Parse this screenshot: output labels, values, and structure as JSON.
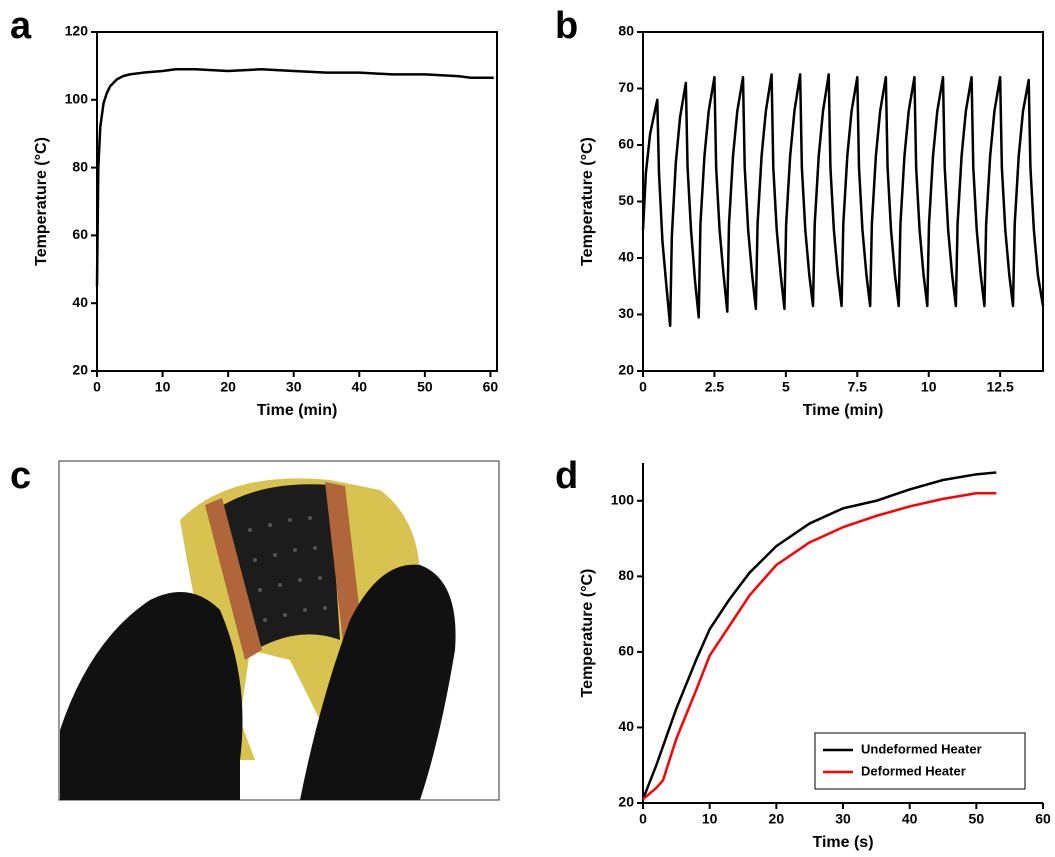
{
  "panel_labels": [
    "a",
    "b",
    "c",
    "d"
  ],
  "chart_data": [
    {
      "type": "line",
      "xlabel": "Time (min)",
      "ylabel": "Temperature (°C)",
      "xlim": [
        0,
        61
      ],
      "xticks": [
        0,
        10,
        20,
        30,
        40,
        50,
        60
      ],
      "ylim": [
        20,
        120
      ],
      "yticks": [
        20,
        40,
        60,
        80,
        100,
        120
      ],
      "series": [
        {
          "color": "#000000",
          "x": [
            0,
            0.2,
            0.5,
            1,
            1.5,
            2,
            3,
            4,
            5,
            7,
            10,
            12,
            15,
            20,
            25,
            30,
            35,
            40,
            45,
            50,
            55,
            57,
            58,
            60.5
          ],
          "values": [
            45,
            80,
            92,
            99,
            102,
            104,
            106,
            107,
            107.5,
            108,
            108.5,
            109,
            109,
            108.5,
            109,
            108.5,
            108,
            108,
            107.5,
            107.5,
            107,
            106.5,
            106.5,
            106.5
          ]
        }
      ]
    },
    {
      "type": "line",
      "xlabel": "Time (min)",
      "ylabel": "Temperature (°C)",
      "xlim": [
        0,
        14
      ],
      "xticks": [
        0,
        2.5,
        5,
        7.5,
        10,
        12.5
      ],
      "ylim": [
        20,
        80
      ],
      "yticks": [
        20,
        30,
        40,
        50,
        60,
        70,
        80
      ],
      "series": [
        {
          "color": "#000000",
          "x": [
            0,
            0.1,
            0.25,
            0.5,
            0.56,
            0.68,
            0.82,
            0.95,
            1.01,
            1.15,
            1.3,
            1.5,
            1.56,
            1.68,
            1.82,
            1.95,
            2.01,
            2.15,
            2.3,
            2.5,
            2.56,
            2.68,
            2.82,
            2.95,
            3.01,
            3.15,
            3.3,
            3.5,
            3.56,
            3.68,
            3.82,
            3.95,
            4.01,
            4.15,
            4.3,
            4.5,
            4.56,
            4.68,
            4.82,
            4.95,
            5.01,
            5.15,
            5.3,
            5.5,
            5.56,
            5.68,
            5.82,
            5.95,
            6.01,
            6.15,
            6.3,
            6.5,
            6.56,
            6.68,
            6.82,
            6.95,
            7.01,
            7.15,
            7.3,
            7.5,
            7.56,
            7.68,
            7.82,
            7.95,
            8.01,
            8.15,
            8.3,
            8.5,
            8.56,
            8.68,
            8.82,
            8.95,
            9.01,
            9.15,
            9.3,
            9.5,
            9.56,
            9.68,
            9.82,
            9.95,
            10.01,
            10.15,
            10.3,
            10.5,
            10.56,
            10.68,
            10.82,
            10.95,
            11.01,
            11.15,
            11.3,
            11.5,
            11.56,
            11.68,
            11.82,
            11.95,
            12.01,
            12.15,
            12.3,
            12.5,
            12.56,
            12.68,
            12.82,
            12.95,
            13.01,
            13.15,
            13.3,
            13.5,
            13.56,
            13.68,
            13.82,
            14
          ],
          "values": [
            45,
            55,
            62,
            68,
            55,
            43,
            35,
            28,
            44,
            57,
            65,
            71,
            56,
            45,
            36,
            29.5,
            46,
            58,
            66,
            72,
            56,
            45,
            37,
            30.5,
            46,
            58,
            66,
            72,
            56,
            45,
            37,
            31,
            46,
            58,
            66,
            72.5,
            56,
            45,
            37,
            31,
            46,
            58,
            66,
            72.5,
            56,
            45,
            37,
            31.5,
            46,
            58,
            66,
            72.5,
            56,
            45,
            37,
            31.5,
            46,
            58,
            66,
            72,
            56,
            45,
            37,
            31.5,
            46,
            58,
            66,
            72,
            56,
            45,
            37,
            31.5,
            46,
            58,
            66,
            72,
            56,
            45,
            37,
            31.5,
            46,
            58,
            66,
            72,
            56,
            45,
            37,
            31.5,
            46,
            58,
            66,
            72,
            56,
            45,
            37,
            31.5,
            46,
            58,
            66,
            72,
            56,
            45,
            37,
            31.5,
            46,
            58,
            66,
            71.5,
            56,
            45,
            37,
            31.5
          ]
        }
      ]
    },
    {
      "type": "line",
      "xlabel": "Time (s)",
      "ylabel": "Temperature (°C)",
      "xlim": [
        0,
        60
      ],
      "xticks": [
        0,
        10,
        20,
        30,
        40,
        50,
        60
      ],
      "ylim": [
        20,
        110
      ],
      "yticks": [
        20,
        40,
        60,
        80,
        100
      ],
      "legend": "lower right",
      "series": [
        {
          "name": "Undeformed Heater",
          "color": "#000000",
          "x": [
            0,
            2,
            5,
            8,
            10,
            13,
            16,
            20,
            25,
            30,
            35,
            40,
            45,
            50,
            53
          ],
          "values": [
            21,
            30,
            45,
            58,
            66,
            74,
            81,
            88,
            94,
            98,
            100,
            103,
            105.5,
            107,
            107.5
          ]
        },
        {
          "name": "Deformed Heater",
          "color": "#ff0000",
          "x": [
            0,
            2,
            3,
            5,
            8,
            10,
            13,
            16,
            20,
            25,
            30,
            35,
            40,
            45,
            50,
            53
          ],
          "values": [
            21,
            24,
            26,
            37,
            50,
            59,
            67,
            75,
            83,
            89,
            93,
            96,
            98.5,
            100.5,
            102,
            102
          ]
        }
      ]
    }
  ]
}
